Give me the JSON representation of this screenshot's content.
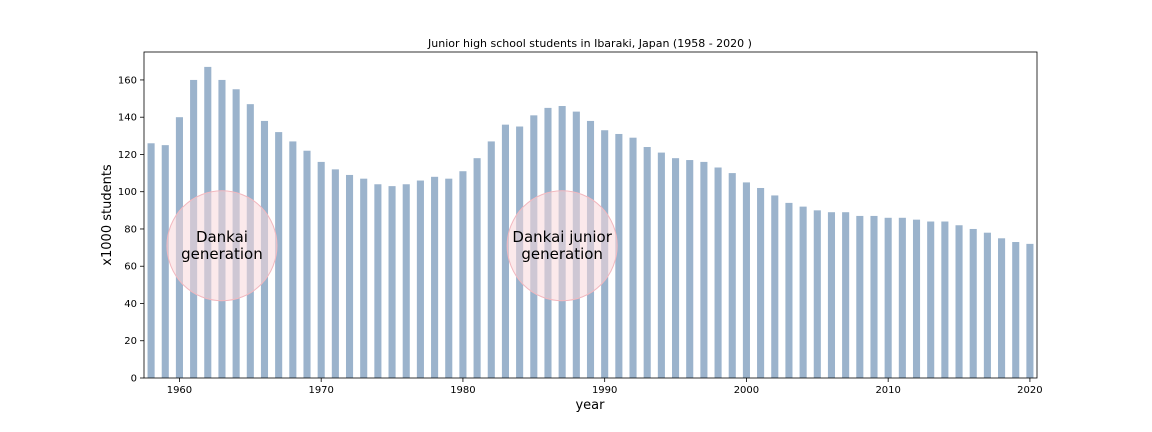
{
  "chart_data": {
    "type": "bar",
    "title": "Junior high school students in Ibaraki, Japan  (1958 - 2020 )",
    "xlabel": "year",
    "ylabel": "x1000 students",
    "xlim": [
      1957.5,
      2020.5
    ],
    "ylim": [
      0,
      175
    ],
    "xticks": [
      1960,
      1970,
      1980,
      1990,
      2000,
      2010,
      2020
    ],
    "yticks": [
      0,
      20,
      40,
      60,
      80,
      100,
      120,
      140,
      160
    ],
    "grid": false,
    "bar_color": "#9bb3cc",
    "annotation_fill": "#f8d7da",
    "annotation_stroke": "#f2b8bf",
    "x": [
      1958,
      1959,
      1960,
      1961,
      1962,
      1963,
      1964,
      1965,
      1966,
      1967,
      1968,
      1969,
      1970,
      1971,
      1972,
      1973,
      1974,
      1975,
      1976,
      1977,
      1978,
      1979,
      1980,
      1981,
      1982,
      1983,
      1984,
      1985,
      1986,
      1987,
      1988,
      1989,
      1990,
      1991,
      1992,
      1993,
      1994,
      1995,
      1996,
      1997,
      1998,
      1999,
      2000,
      2001,
      2002,
      2003,
      2004,
      2005,
      2006,
      2007,
      2008,
      2009,
      2010,
      2011,
      2012,
      2013,
      2014,
      2015,
      2016,
      2017,
      2018,
      2019,
      2020
    ],
    "values": [
      126,
      125,
      140,
      160,
      167,
      160,
      155,
      147,
      138,
      132,
      127,
      122,
      116,
      112,
      109,
      107,
      104,
      103,
      104,
      106,
      108,
      107,
      111,
      118,
      127,
      136,
      135,
      141,
      145,
      146,
      143,
      138,
      133,
      131,
      129,
      124,
      121,
      118,
      117,
      116,
      113,
      110,
      105,
      102,
      98,
      94,
      92,
      90,
      89,
      89,
      87,
      87,
      86,
      86,
      85,
      84,
      84,
      82,
      80,
      78,
      75,
      73,
      72
    ],
    "annotations": [
      {
        "lines": [
          "Dankai",
          "generation"
        ],
        "x": 1963,
        "y": 71
      },
      {
        "lines": [
          "Dankai junior",
          "generation"
        ],
        "x": 1987,
        "y": 71
      }
    ]
  }
}
